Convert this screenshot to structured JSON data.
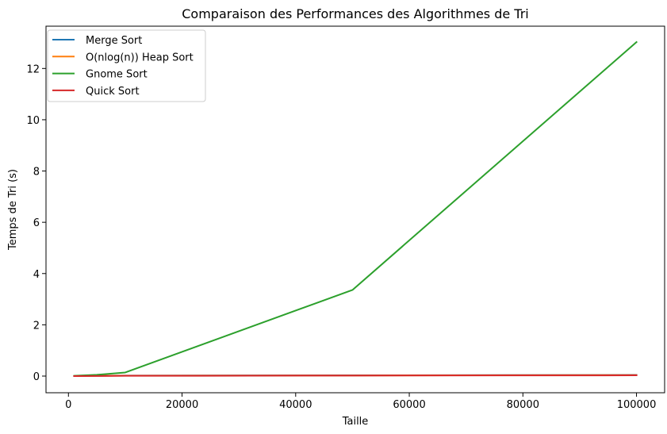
{
  "chart_data": {
    "type": "line",
    "title": "Comparaison des Performances des Algorithmes de Tri",
    "xlabel": "Taille",
    "ylabel": "Temps de Tri (s)",
    "x": [
      1000,
      5000,
      10000,
      50000,
      100000
    ],
    "xlim": [
      -3950,
      104950
    ],
    "ylim": [
      -0.65,
      13.65
    ],
    "xticks": [
      0,
      20000,
      40000,
      60000,
      80000,
      100000
    ],
    "xtick_labels": [
      "0",
      "20000",
      "40000",
      "60000",
      "80000",
      "100000"
    ],
    "yticks": [
      0,
      2,
      4,
      6,
      8,
      10,
      12
    ],
    "ytick_labels": [
      "0",
      "2",
      "4",
      "6",
      "8",
      "10",
      "12"
    ],
    "grid": false,
    "legend_position": "top-left",
    "series": [
      {
        "name": "Merge Sort",
        "color": "#1f77b4",
        "values": [
          0.002,
          0.01,
          0.02,
          0.03,
          0.045
        ]
      },
      {
        "name": "O(nlog(n)) Heap Sort",
        "color": "#ff7f0e",
        "values": [
          0.002,
          0.01,
          0.015,
          0.025,
          0.04
        ]
      },
      {
        "name": "Gnome Sort",
        "color": "#2ca02c",
        "values": [
          0.01,
          0.05,
          0.14,
          3.36,
          13.03
        ]
      },
      {
        "name": "Quick Sort",
        "color": "#d62728",
        "values": [
          0.001,
          0.005,
          0.01,
          0.02,
          0.03
        ]
      }
    ]
  }
}
